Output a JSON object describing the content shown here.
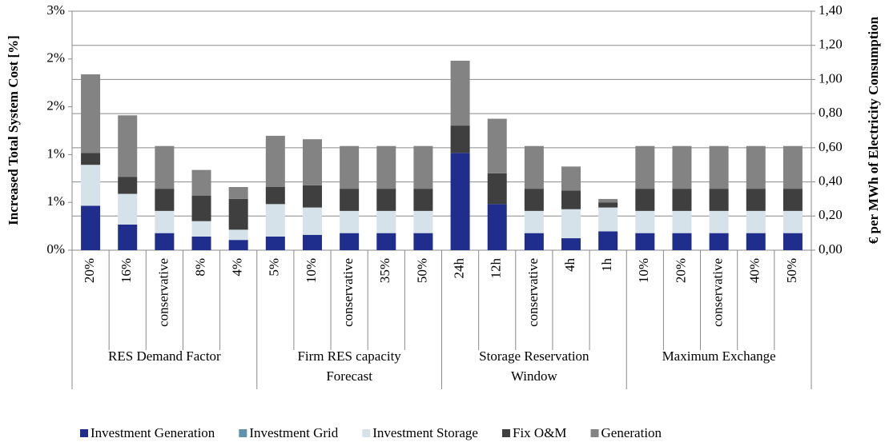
{
  "chart_data": {
    "type": "bar",
    "stacked": true,
    "y_label": "Increased Total System Cost [%]",
    "y2_label": "€ per MWh of Electricity Consumption",
    "ylim": [
      0,
      3
    ],
    "yticks": [
      {
        "value": 0,
        "label": "0%"
      },
      {
        "value": 0.6,
        "label": "1%"
      },
      {
        "value": 1.2,
        "label": "1%"
      },
      {
        "value": 1.8,
        "label": "2%"
      },
      {
        "value": 2.4,
        "label": "2%"
      },
      {
        "value": 3,
        "label": "3%"
      }
    ],
    "y2lim": [
      0,
      1.4
    ],
    "y2ticks": [
      {
        "value": 0,
        "label": "0,00"
      },
      {
        "value": 0.2,
        "label": "0,20"
      },
      {
        "value": 0.4,
        "label": "0,40"
      },
      {
        "value": 0.6,
        "label": "0,60"
      },
      {
        "value": 0.8,
        "label": "0,80"
      },
      {
        "value": 1.0,
        "label": "1,00"
      },
      {
        "value": 1.2,
        "label": "1,20"
      },
      {
        "value": 1.4,
        "label": "1,40"
      }
    ],
    "grid": true,
    "legend": "bottom",
    "groups": [
      {
        "label": [
          "RES Demand Factor"
        ],
        "categories": [
          "20%",
          "16%",
          "conservative",
          "8%",
          "4%"
        ]
      },
      {
        "label": [
          "Firm RES capacity",
          "Forecast"
        ],
        "categories": [
          "5%",
          "10%",
          "conservative",
          "35%",
          "50%"
        ]
      },
      {
        "label": [
          "Storage Reservation",
          "Window"
        ],
        "categories": [
          "24h",
          "12h",
          "conservative",
          "4h",
          "1h"
        ]
      },
      {
        "label": [
          "Maximum Exchange"
        ],
        "categories": [
          "10%",
          "20%",
          "conservative",
          "40%",
          "50%"
        ]
      }
    ],
    "series": [
      {
        "name": "Investment Generation",
        "color": "#1f2e8c",
        "axis": "y2",
        "values": [
          0.26,
          0.15,
          0.1,
          0.08,
          0.06,
          0.08,
          0.09,
          0.1,
          0.1,
          0.1,
          0.57,
          0.27,
          0.1,
          0.07,
          0.11,
          0.1,
          0.1,
          0.1,
          0.1,
          0.1
        ]
      },
      {
        "name": "Investment Grid",
        "color": "#5f93ad",
        "axis": "y2",
        "values": [
          0,
          0,
          0,
          0,
          0,
          0,
          0,
          0,
          0,
          0,
          0,
          0,
          0,
          0,
          0,
          0,
          0,
          0,
          0,
          0
        ]
      },
      {
        "name": "Investment Storage",
        "color": "#d5e2ea",
        "axis": "y2",
        "values": [
          0.24,
          0.18,
          0.13,
          0.09,
          0.06,
          0.19,
          0.16,
          0.13,
          0.13,
          0.13,
          0,
          0,
          0.13,
          0.17,
          0.14,
          0.13,
          0.13,
          0.13,
          0.13,
          0.13
        ]
      },
      {
        "name": "Fix O&M",
        "color": "#3f3f3f",
        "axis": "y2",
        "values": [
          0.07,
          0.1,
          0.13,
          0.15,
          0.18,
          0.1,
          0.13,
          0.13,
          0.13,
          0.13,
          0.16,
          0.18,
          0.13,
          0.11,
          0.03,
          0.13,
          0.13,
          0.13,
          0.13,
          0.13
        ]
      },
      {
        "name": "Generation",
        "color": "#838383",
        "axis": "y2",
        "values": [
          0.46,
          0.36,
          0.25,
          0.15,
          0.07,
          0.3,
          0.27,
          0.25,
          0.25,
          0.25,
          0.38,
          0.32,
          0.25,
          0.14,
          0.02,
          0.25,
          0.25,
          0.25,
          0.25,
          0.25
        ]
      }
    ]
  }
}
